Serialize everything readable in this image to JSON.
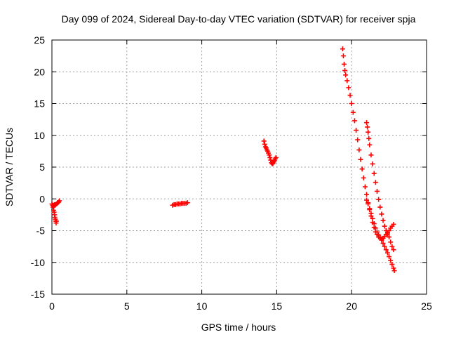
{
  "chart_data": {
    "type": "scatter",
    "title": "Day 099 of 2024, Sidereal Day-to-day VTEC variation (SDTVAR) for receiver spja",
    "xlabel": "GPS time / hours",
    "ylabel": "SDTVAR / TECUs",
    "xlim": [
      0,
      25
    ],
    "ylim": [
      -15,
      25
    ],
    "xticks": [
      0,
      5,
      10,
      15,
      20,
      25
    ],
    "yticks": [
      -15,
      -10,
      -5,
      0,
      5,
      10,
      15,
      20,
      25
    ],
    "xtick_labels": [
      "0",
      "5",
      "10",
      "15",
      "20",
      "25"
    ],
    "ytick_labels": [
      "-15",
      "-10",
      "-5",
      "0",
      "5",
      "10",
      "15",
      "20",
      "25"
    ],
    "grid": true,
    "marker": "+",
    "color": "#ff0000",
    "series": [
      {
        "points": [
          [
            0.0,
            -0.8
          ],
          [
            0.05,
            -1.0
          ],
          [
            0.08,
            -1.3
          ],
          [
            0.1,
            -1.0
          ],
          [
            0.12,
            -1.8
          ],
          [
            0.15,
            -2.1
          ],
          [
            0.18,
            -2.5
          ],
          [
            0.2,
            -2.9
          ],
          [
            0.23,
            -3.2
          ],
          [
            0.26,
            -3.5
          ],
          [
            0.28,
            -3.8
          ],
          [
            0.3,
            -3.5
          ],
          [
            0.1,
            -1.1
          ],
          [
            0.18,
            -0.9
          ],
          [
            0.25,
            -0.9
          ],
          [
            0.3,
            -0.8
          ],
          [
            0.35,
            -0.7
          ],
          [
            0.4,
            -0.6
          ],
          [
            0.45,
            -0.5
          ],
          [
            0.5,
            -0.3
          ],
          [
            8.05,
            -1.0
          ],
          [
            8.15,
            -0.9
          ],
          [
            8.25,
            -0.9
          ],
          [
            8.35,
            -0.8
          ],
          [
            8.45,
            -0.8
          ],
          [
            8.55,
            -0.8
          ],
          [
            8.65,
            -0.7
          ],
          [
            8.75,
            -0.7
          ],
          [
            8.85,
            -0.7
          ],
          [
            8.95,
            -0.7
          ],
          [
            9.05,
            -0.6
          ],
          [
            14.15,
            9.1
          ],
          [
            14.2,
            8.6
          ],
          [
            14.25,
            8.2
          ],
          [
            14.3,
            8.0
          ],
          [
            14.35,
            7.7
          ],
          [
            14.4,
            7.5
          ],
          [
            14.45,
            7.2
          ],
          [
            14.5,
            6.9
          ],
          [
            14.55,
            6.5
          ],
          [
            14.6,
            6.1
          ],
          [
            14.65,
            5.7
          ],
          [
            14.7,
            5.5
          ],
          [
            14.75,
            5.6
          ],
          [
            14.8,
            5.8
          ],
          [
            14.85,
            6.0
          ],
          [
            14.9,
            6.3
          ],
          [
            14.95,
            6.5
          ],
          [
            19.4,
            23.6
          ],
          [
            19.45,
            22.5
          ],
          [
            19.5,
            21.2
          ],
          [
            19.55,
            20.2
          ],
          [
            19.6,
            19.5
          ],
          [
            19.7,
            18.6
          ],
          [
            19.8,
            17.5
          ],
          [
            19.9,
            16.3
          ],
          [
            20.0,
            15.0
          ],
          [
            20.1,
            13.6
          ],
          [
            20.2,
            12.3
          ],
          [
            20.3,
            10.8
          ],
          [
            20.4,
            9.3
          ],
          [
            20.5,
            7.7
          ],
          [
            20.6,
            6.2
          ],
          [
            20.7,
            4.7
          ],
          [
            20.8,
            3.3
          ],
          [
            20.9,
            1.9
          ],
          [
            21.0,
            0.7
          ],
          [
            21.1,
            -0.6
          ],
          [
            21.2,
            -1.7
          ],
          [
            21.3,
            -2.7
          ],
          [
            21.4,
            -3.7
          ],
          [
            21.5,
            -4.5
          ],
          [
            21.6,
            -5.2
          ],
          [
            21.7,
            -5.6
          ],
          [
            21.8,
            -6.0
          ],
          [
            21.0,
            12.0
          ],
          [
            21.05,
            11.3
          ],
          [
            21.1,
            10.5
          ],
          [
            21.15,
            9.5
          ],
          [
            21.2,
            8.5
          ],
          [
            21.3,
            6.9
          ],
          [
            21.4,
            5.5
          ],
          [
            21.5,
            4.0
          ],
          [
            21.6,
            2.6
          ],
          [
            21.7,
            1.2
          ],
          [
            21.8,
            -0.1
          ],
          [
            21.9,
            -1.3
          ],
          [
            22.0,
            -2.4
          ],
          [
            22.1,
            -3.4
          ],
          [
            22.2,
            -4.3
          ],
          [
            22.3,
            -5.0
          ],
          [
            22.4,
            -5.5
          ],
          [
            22.5,
            -6.0
          ],
          [
            22.6,
            -6.8
          ],
          [
            22.7,
            -7.5
          ],
          [
            22.8,
            -8.0
          ],
          [
            21.0,
            -0.2
          ],
          [
            21.1,
            -0.8
          ],
          [
            21.2,
            -1.5
          ],
          [
            21.3,
            -2.3
          ],
          [
            21.4,
            -3.1
          ],
          [
            21.5,
            -3.9
          ],
          [
            21.6,
            -4.6
          ],
          [
            21.7,
            -5.2
          ],
          [
            21.8,
            -5.7
          ],
          [
            21.9,
            -6.1
          ],
          [
            22.0,
            -6.3
          ],
          [
            22.1,
            -6.2
          ],
          [
            22.2,
            -5.9
          ],
          [
            22.3,
            -5.6
          ],
          [
            22.4,
            -5.3
          ],
          [
            22.5,
            -5.0
          ],
          [
            22.6,
            -4.6
          ],
          [
            22.7,
            -4.3
          ],
          [
            22.8,
            -4.0
          ],
          [
            22.0,
            -6.5
          ],
          [
            22.1,
            -7.0
          ],
          [
            22.2,
            -7.5
          ],
          [
            22.3,
            -8.0
          ],
          [
            22.4,
            -8.5
          ],
          [
            22.5,
            -9.1
          ],
          [
            22.6,
            -9.7
          ],
          [
            22.7,
            -10.3
          ],
          [
            22.8,
            -10.9
          ],
          [
            22.85,
            -11.3
          ]
        ]
      }
    ]
  }
}
